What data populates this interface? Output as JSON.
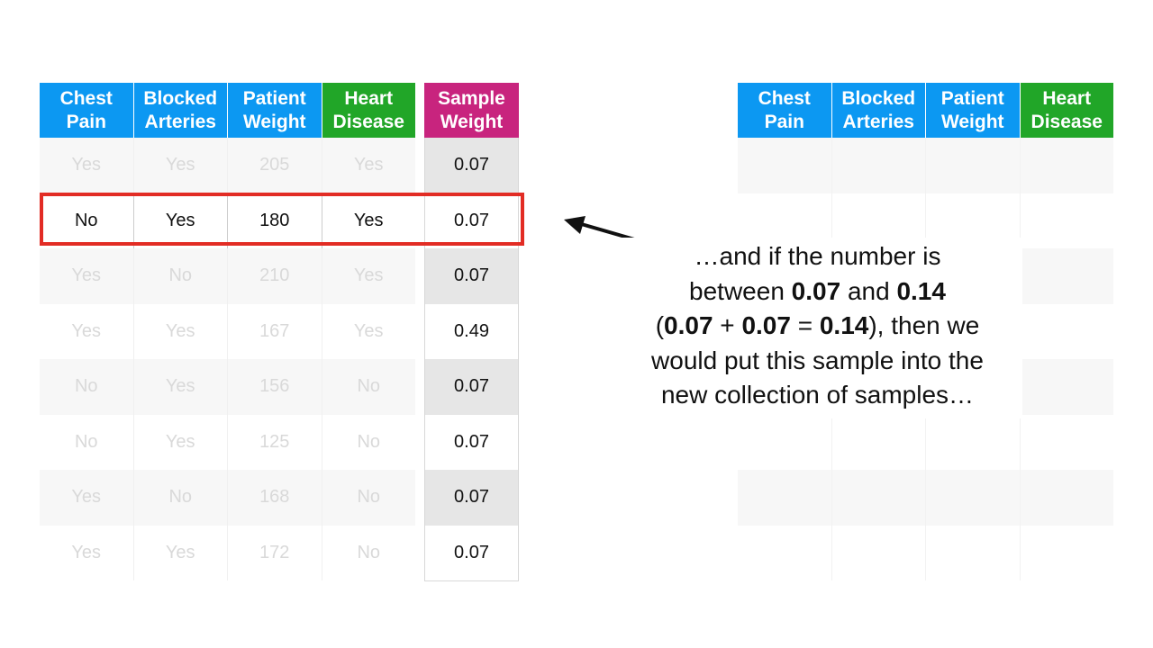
{
  "left_table": {
    "headers": [
      {
        "line1": "Chest",
        "line2": "Pain"
      },
      {
        "line1": "Blocked",
        "line2": "Arteries"
      },
      {
        "line1": "Patient",
        "line2": "Weight"
      },
      {
        "line1": "Heart",
        "line2": "Disease"
      }
    ],
    "rows": [
      [
        "Yes",
        "Yes",
        "205",
        "Yes"
      ],
      [
        "No",
        "Yes",
        "180",
        "Yes"
      ],
      [
        "Yes",
        "No",
        "210",
        "Yes"
      ],
      [
        "Yes",
        "Yes",
        "167",
        "Yes"
      ],
      [
        "No",
        "Yes",
        "156",
        "No"
      ],
      [
        "No",
        "Yes",
        "125",
        "No"
      ],
      [
        "Yes",
        "No",
        "168",
        "No"
      ],
      [
        "Yes",
        "Yes",
        "172",
        "No"
      ]
    ]
  },
  "weight_table": {
    "header": {
      "line1": "Sample",
      "line2": "Weight"
    },
    "values": [
      "0.07",
      "0.07",
      "0.07",
      "0.49",
      "0.07",
      "0.07",
      "0.07",
      "0.07"
    ]
  },
  "right_table": {
    "headers": [
      {
        "line1": "Chest",
        "line2": "Pain"
      },
      {
        "line1": "Blocked",
        "line2": "Arteries"
      },
      {
        "line1": "Patient",
        "line2": "Weight"
      },
      {
        "line1": "Heart",
        "line2": "Disease"
      }
    ]
  },
  "annotation": {
    "line1": "…and if the number is",
    "line2_pre": "between ",
    "line2_b1": "0.07",
    "line2_mid": " and ",
    "line2_b2": "0.14",
    "line3_open": "(",
    "line3_b1": "0.07",
    "line3_plus": " + ",
    "line3_b2": "0.07",
    "line3_eq": " = ",
    "line3_b3": "0.14",
    "line3_post": "), then we",
    "line4": "would put this sample into the",
    "line5": "new collection of samples…"
  },
  "colors": {
    "blue_header": "#0c98f2",
    "green_header": "#21a628",
    "magenta_header": "#c8247e",
    "highlight_red": "#e22c24"
  }
}
